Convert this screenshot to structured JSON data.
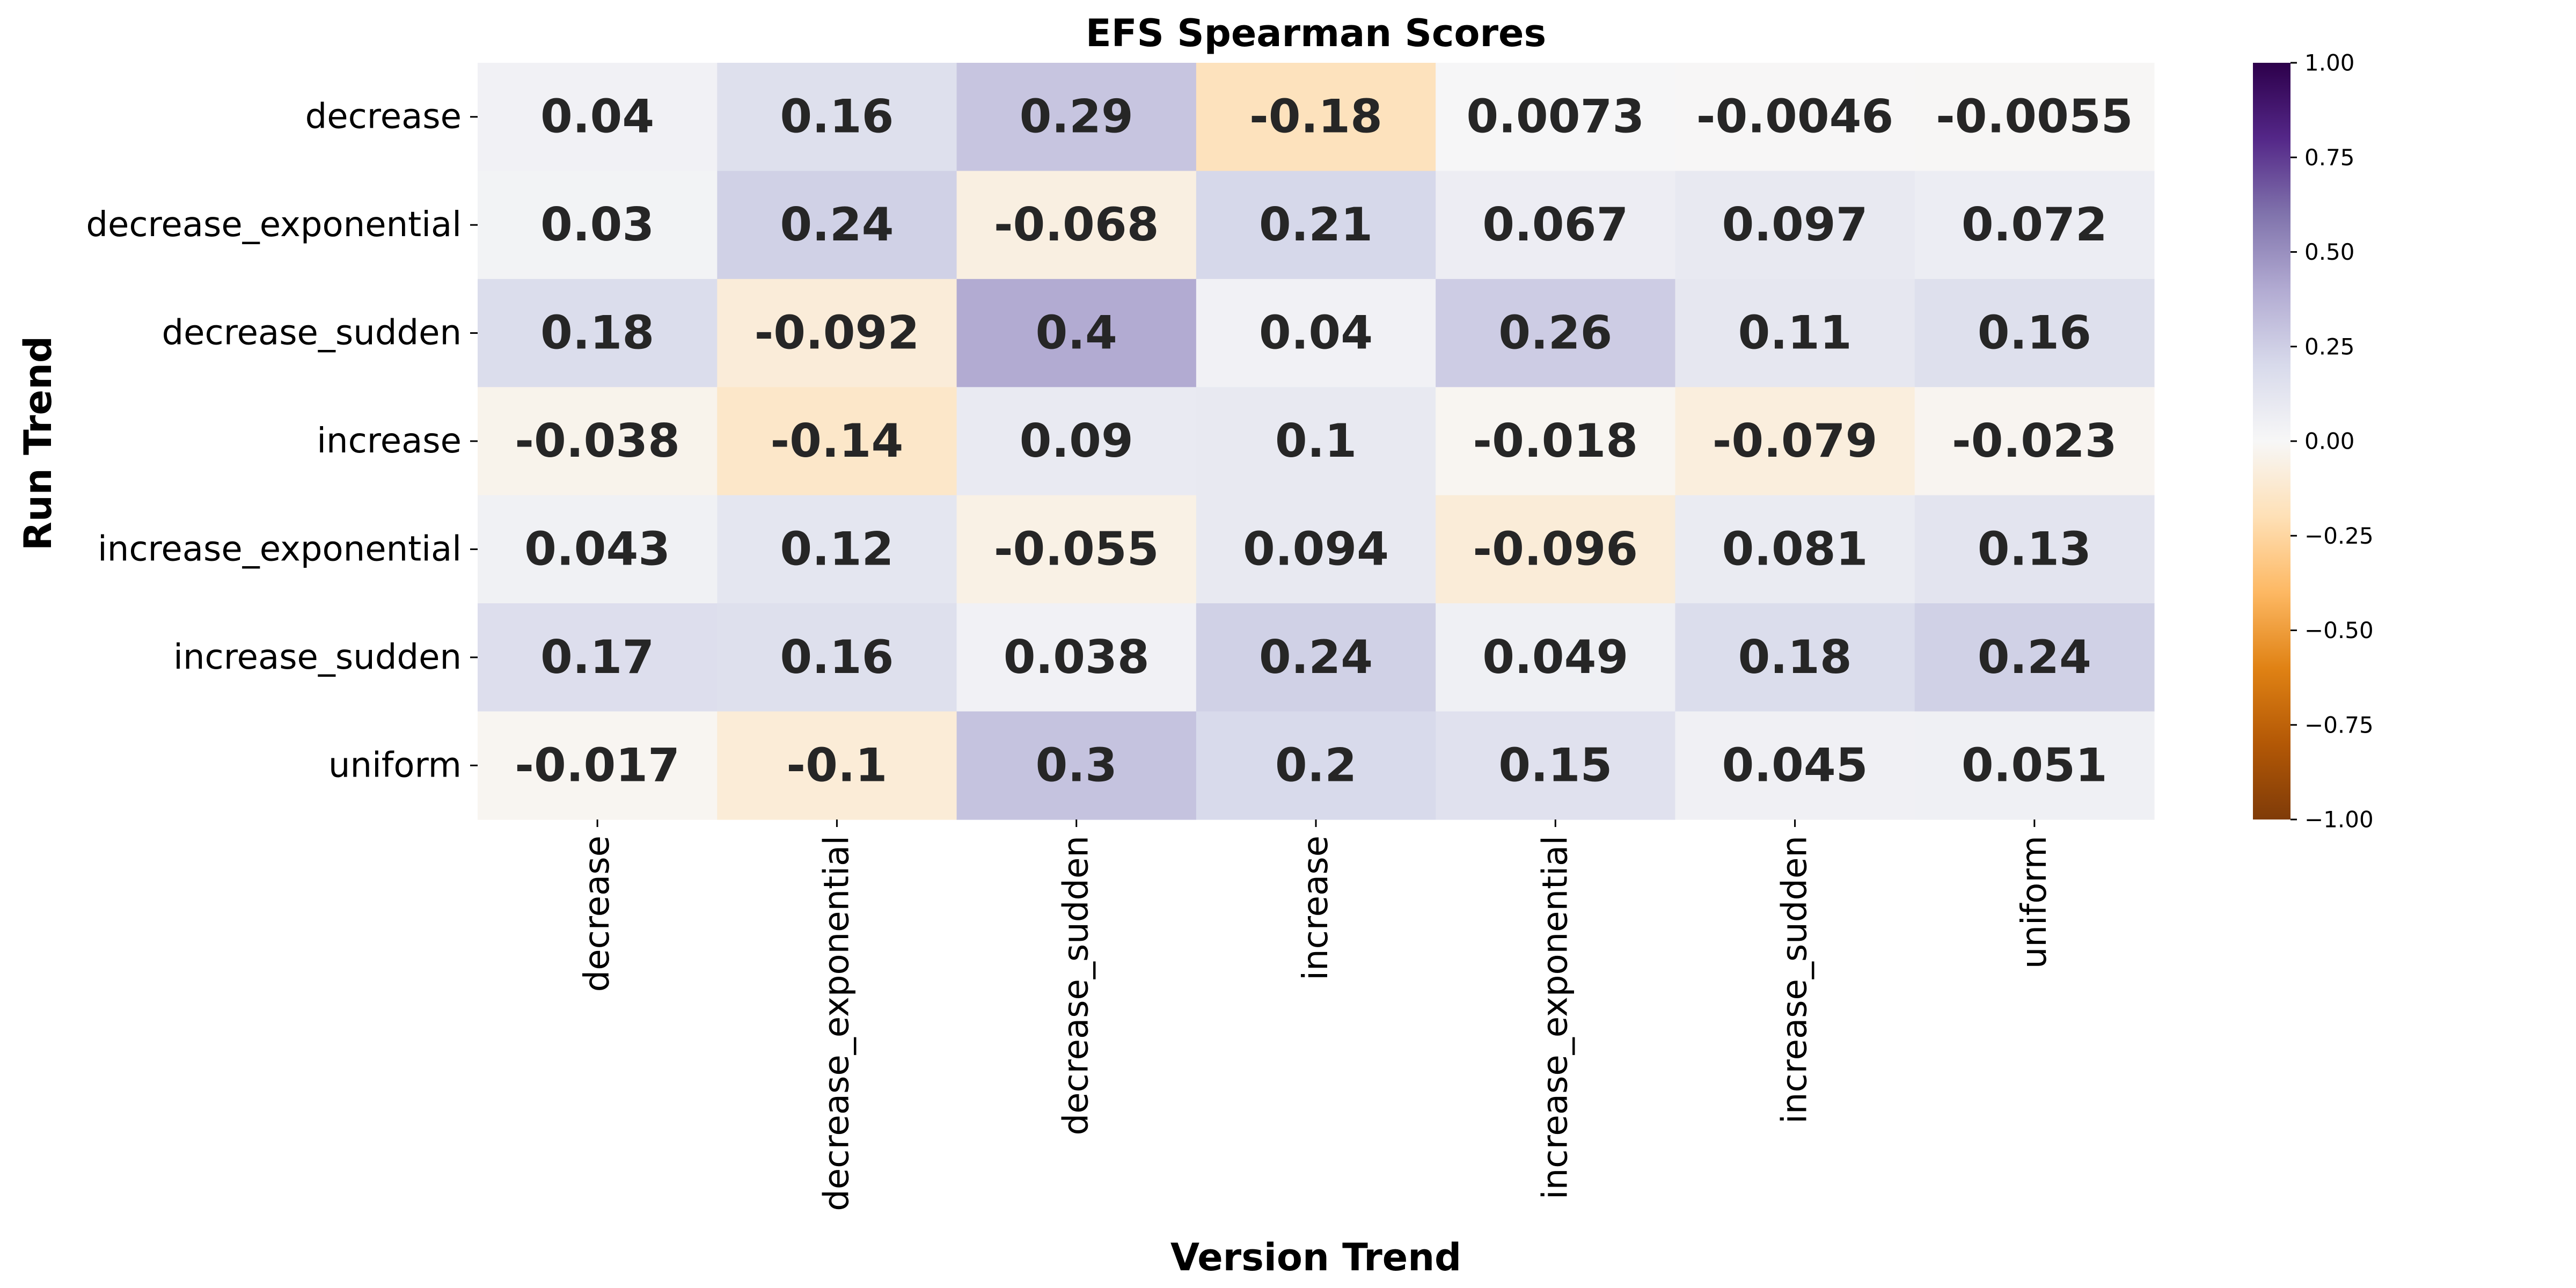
{
  "chart_data": {
    "type": "heatmap",
    "title": "EFS Spearman Scores",
    "xlabel": "Version Trend",
    "ylabel": "Run Trend",
    "x_categories": [
      "decrease",
      "decrease_exponential",
      "decrease_sudden",
      "increase",
      "increase_exponential",
      "increase_sudden",
      "uniform"
    ],
    "y_categories": [
      "decrease",
      "decrease_exponential",
      "decrease_sudden",
      "increase",
      "increase_exponential",
      "increase_sudden",
      "uniform"
    ],
    "values": [
      [
        0.04,
        0.16,
        0.29,
        -0.18,
        0.0073,
        -0.0046,
        -0.0055
      ],
      [
        0.03,
        0.24,
        -0.068,
        0.21,
        0.067,
        0.097,
        0.072
      ],
      [
        0.18,
        -0.092,
        0.4,
        0.04,
        0.26,
        0.11,
        0.16
      ],
      [
        -0.038,
        -0.14,
        0.09,
        0.1,
        -0.018,
        -0.079,
        -0.023
      ],
      [
        0.043,
        0.12,
        -0.055,
        0.094,
        -0.096,
        0.081,
        0.13
      ],
      [
        0.17,
        0.16,
        0.038,
        0.24,
        0.049,
        0.18,
        0.24
      ],
      [
        -0.017,
        -0.1,
        0.3,
        0.2,
        0.15,
        0.045,
        0.051
      ]
    ],
    "labels": [
      [
        "0.04",
        "0.16",
        "0.29",
        "-0.18",
        "0.0073",
        "-0.0046",
        "-0.0055"
      ],
      [
        "0.03",
        "0.24",
        "-0.068",
        "0.21",
        "0.067",
        "0.097",
        "0.072"
      ],
      [
        "0.18",
        "-0.092",
        "0.4",
        "0.04",
        "0.26",
        "0.11",
        "0.16"
      ],
      [
        "-0.038",
        "-0.14",
        "0.09",
        "0.1",
        "-0.018",
        "-0.079",
        "-0.023"
      ],
      [
        "0.043",
        "0.12",
        "-0.055",
        "0.094",
        "-0.096",
        "0.081",
        "0.13"
      ],
      [
        "0.17",
        "0.16",
        "0.038",
        "0.24",
        "0.049",
        "0.18",
        "0.24"
      ],
      [
        "-0.017",
        "-0.1",
        "0.3",
        "0.2",
        "0.15",
        "0.045",
        "0.051"
      ]
    ],
    "colorbar": {
      "range": [
        -1.0,
        1.0
      ],
      "ticks": [
        1.0,
        0.75,
        0.5,
        0.25,
        0.0,
        -0.25,
        -0.5,
        -0.75,
        -1.0
      ],
      "tick_labels": [
        "1.00",
        "0.75",
        "0.50",
        "0.25",
        "0.00",
        "−0.25",
        "−0.50",
        "−0.75",
        "−1.00"
      ],
      "colormap": "PuOr",
      "colormap_stops": [
        "#2d004b",
        "#542788",
        "#8073ac",
        "#b2abd2",
        "#d8daeb",
        "#f7f7f7",
        "#fee0b6",
        "#fdb863",
        "#e08214",
        "#b35806",
        "#7f3b08"
      ]
    },
    "grid": false,
    "legend": "colorbar-right"
  }
}
